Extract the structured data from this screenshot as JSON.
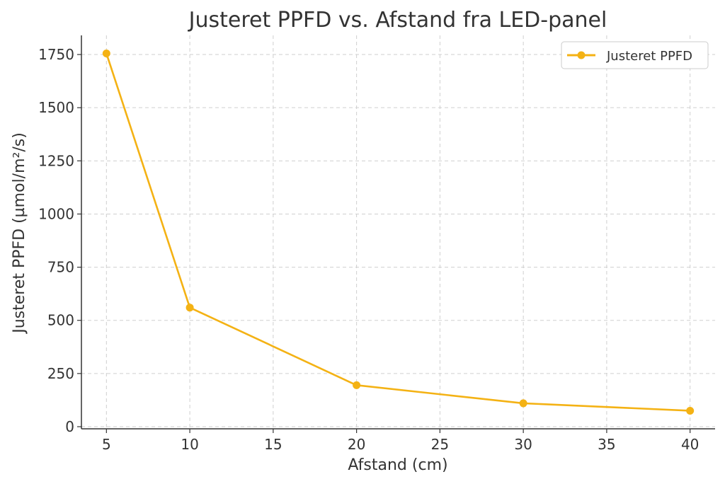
{
  "chart_data": {
    "type": "line",
    "title": "Justeret PPFD vs. Afstand fra LED-panel",
    "xlabel": "Afstand (cm)",
    "ylabel": "Justeret PPFD (µmol/m²/s)",
    "x_ticks": [
      5,
      10,
      15,
      20,
      25,
      30,
      35,
      40
    ],
    "y_ticks": [
      0,
      250,
      500,
      750,
      1000,
      1250,
      1500,
      1750
    ],
    "xlim": [
      3.5,
      41.5
    ],
    "ylim": [
      -10,
      1840
    ],
    "grid": true,
    "legend_position": "top-right",
    "series": [
      {
        "name": "Justeret PPFD",
        "color": "#F4B214",
        "marker": "circle",
        "x": [
          5,
          10,
          20,
          30,
          40
        ],
        "y": [
          1755,
          560,
          195,
          110,
          75
        ]
      }
    ]
  }
}
